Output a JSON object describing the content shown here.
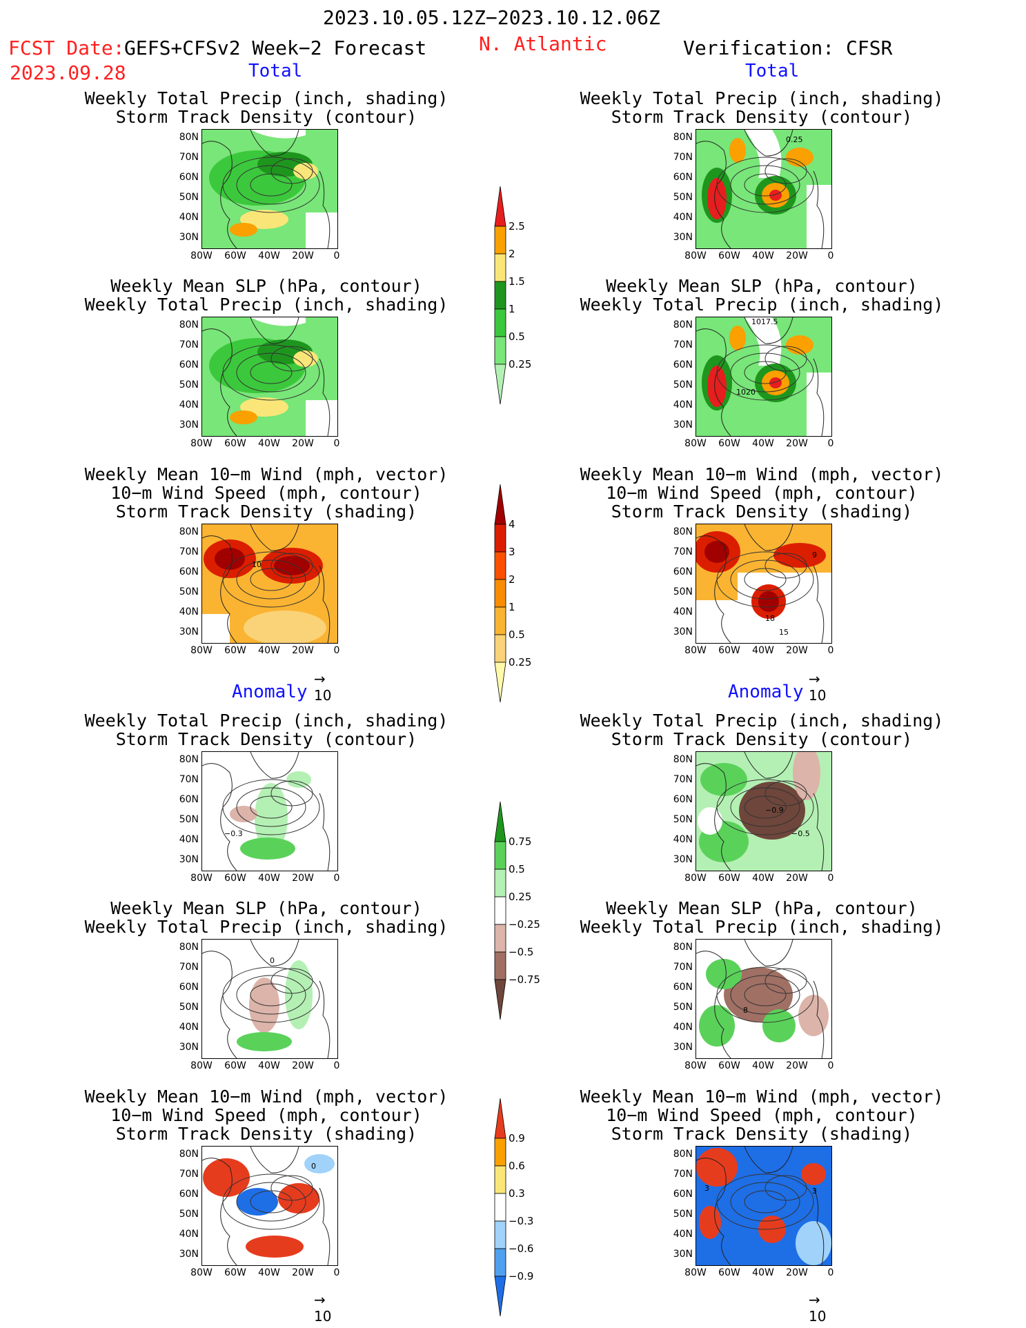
{
  "header": {
    "period": "2023.10.05.12Z−2023.10.12.06Z",
    "fcst_label": "FCST Date:",
    "model": "GEFS+CFSv2 Week−2 Forecast",
    "fcst_date": "2023.09.28",
    "region": "N. Atlantic",
    "verification": "Verification: CFSR"
  },
  "sections": {
    "total": "Total",
    "anomaly": "Anomaly"
  },
  "panel_titles": {
    "precip_track": [
      "Weekly Total Precip (inch, shading)",
      "Storm Track Density (contour)"
    ],
    "slp_precip": [
      "Weekly Mean SLP (hPa, contour)",
      "Weekly Total Precip (inch, shading)"
    ],
    "wind_track": [
      "Weekly Mean 10−m Wind (mph, vector)",
      "10−m Wind Speed (mph, contour)",
      "Storm Track Density (shading)"
    ]
  },
  "axes": {
    "lat_labels": [
      "80N",
      "70N",
      "60N",
      "50N",
      "40N",
      "30N"
    ],
    "lon_labels": [
      "80W",
      "60W",
      "40W",
      "20W",
      "0"
    ]
  },
  "colorbars": {
    "total_precip": [
      "2.5",
      "2",
      "1.5",
      "1",
      "0.5",
      "0.25"
    ],
    "total_track": [
      "4",
      "3",
      "2",
      "1",
      "0.5",
      "0.25"
    ],
    "anom_precip": [
      "0.75",
      "0.5",
      "0.25",
      "−0.25",
      "−0.5",
      "−0.75"
    ],
    "anom_track": [
      "0.9",
      "0.6",
      "0.3",
      "−0.3",
      "−0.6",
      "−0.9"
    ]
  },
  "colors": {
    "precip_total": [
      "#b4f0b4",
      "#78e678",
      "#3cc83c",
      "#1e961e",
      "#fae678",
      "#faa000",
      "#e61e1e"
    ],
    "track_total": [
      "#fffaaa",
      "#fad278",
      "#fab432",
      "#fa8c00",
      "#fa5000",
      "#dc1e00",
      "#a00000"
    ],
    "precip_anom": [
      "#6e463c",
      "#a07064",
      "#dcb4aa",
      "#ffffff",
      "#b4f0b4",
      "#5ad25a",
      "#1e961e"
    ],
    "track_anom": [
      "#1e6ee6",
      "#50a0f0",
      "#a0d2fa",
      "#ffffff",
      "#fae678",
      "#faa000",
      "#e63c1e"
    ]
  },
  "vector_ref": "10",
  "contour_labels": {
    "r_precip_track_total": "0.25",
    "r_slp_total_a": "1017.5",
    "r_slp_total_b": "1020",
    "l_wind_total": "10",
    "r_wind_total_a": "18",
    "r_wind_total_b": "15",
    "r_wind_total_c": "9",
    "l_precip_anom": "−0.3",
    "r_precip_anom_a": "−0.9",
    "r_precip_anom_b": "−0.5",
    "l_slp_anom": "0",
    "r_slp_anom": "8",
    "l_wind_anom": "0",
    "r_wind_anom_a": "3",
    "r_wind_anom_b": "3"
  }
}
